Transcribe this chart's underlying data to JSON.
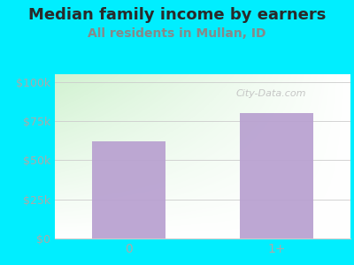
{
  "title": "Median family income by earners",
  "subtitle": "All residents in Mullan, ID",
  "categories": [
    "0",
    "1+"
  ],
  "values": [
    62000,
    80000
  ],
  "bar_color": "#b8a0d0",
  "bg_color": "#00eeff",
  "yticks": [
    0,
    25000,
    50000,
    75000,
    100000
  ],
  "ytick_labels": [
    "$0",
    "$25k",
    "$50k",
    "$75k",
    "$100k"
  ],
  "ylim": [
    0,
    105000
  ],
  "title_color": "#2a2a2a",
  "subtitle_color": "#888888",
  "tick_color": "#aaaaaa",
  "watermark": "City-Data.com",
  "title_fontsize": 13,
  "subtitle_fontsize": 10,
  "gradient_tl": [
    0.82,
    0.95,
    0.82
  ],
  "gradient_br": [
    1.0,
    1.0,
    1.0
  ]
}
